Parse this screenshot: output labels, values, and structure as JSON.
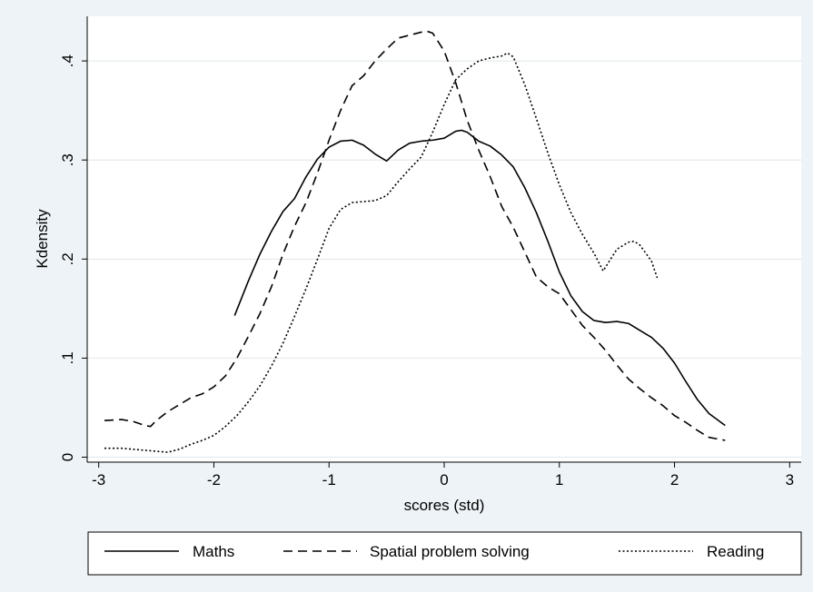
{
  "chart_data": {
    "type": "line",
    "title": "",
    "xlabel": "scores (std)",
    "ylabel": "Kdensity",
    "xlim": [
      -3.1,
      3.1
    ],
    "ylim": [
      -0.005,
      0.445
    ],
    "x_ticks": [
      -3,
      -2,
      -1,
      0,
      1,
      2,
      3
    ],
    "x_tick_labels": [
      "-3",
      "-2",
      "-1",
      "0",
      "1",
      "2",
      "3"
    ],
    "y_ticks": [
      0,
      0.1,
      0.2,
      0.3,
      0.4
    ],
    "y_tick_labels": [
      "0",
      ".1",
      ".2",
      ".3",
      ".4"
    ],
    "grid": "horizontal",
    "legend_position": "bottom",
    "colors": {
      "background": "#eef3f7",
      "plot_area": "#ffffff",
      "grid": "#e1e6ea",
      "line": "#000000"
    },
    "series": [
      {
        "name": "Maths",
        "dash": "solid",
        "x": [
          -1.82,
          -1.7,
          -1.6,
          -1.5,
          -1.4,
          -1.3,
          -1.2,
          -1.1,
          -1.0,
          -0.9,
          -0.8,
          -0.7,
          -0.6,
          -0.5,
          -0.4,
          -0.3,
          -0.2,
          -0.1,
          0.0,
          0.1,
          0.15,
          0.2,
          0.3,
          0.4,
          0.5,
          0.6,
          0.7,
          0.8,
          0.9,
          1.0,
          1.1,
          1.2,
          1.3,
          1.4,
          1.5,
          1.6,
          1.7,
          1.8,
          1.9,
          2.0,
          2.1,
          2.2,
          2.3,
          2.44
        ],
        "y": [
          0.143,
          0.178,
          0.205,
          0.228,
          0.248,
          0.261,
          0.283,
          0.301,
          0.313,
          0.319,
          0.32,
          0.315,
          0.306,
          0.299,
          0.31,
          0.317,
          0.319,
          0.32,
          0.322,
          0.329,
          0.33,
          0.328,
          0.319,
          0.314,
          0.305,
          0.293,
          0.272,
          0.247,
          0.218,
          0.187,
          0.163,
          0.147,
          0.138,
          0.136,
          0.137,
          0.135,
          0.128,
          0.121,
          0.11,
          0.095,
          0.076,
          0.058,
          0.044,
          0.032
        ]
      },
      {
        "name": "Spatial problem solving",
        "dash": "dashed",
        "x": [
          -2.95,
          -2.8,
          -2.7,
          -2.6,
          -2.55,
          -2.5,
          -2.4,
          -2.3,
          -2.2,
          -2.1,
          -2.0,
          -1.9,
          -1.8,
          -1.7,
          -1.6,
          -1.5,
          -1.4,
          -1.3,
          -1.2,
          -1.1,
          -1.0,
          -0.9,
          -0.8,
          -0.7,
          -0.6,
          -0.5,
          -0.4,
          -0.3,
          -0.2,
          -0.15,
          -0.1,
          0.0,
          0.1,
          0.2,
          0.3,
          0.4,
          0.5,
          0.6,
          0.7,
          0.8,
          0.9,
          1.0,
          1.1,
          1.2,
          1.3,
          1.4,
          1.5,
          1.6,
          1.7,
          1.8,
          1.9,
          2.0,
          2.1,
          2.2,
          2.3,
          2.44
        ],
        "y": [
          0.037,
          0.038,
          0.036,
          0.032,
          0.031,
          0.037,
          0.046,
          0.053,
          0.06,
          0.064,
          0.071,
          0.082,
          0.1,
          0.122,
          0.145,
          0.172,
          0.205,
          0.233,
          0.257,
          0.287,
          0.32,
          0.35,
          0.375,
          0.385,
          0.4,
          0.412,
          0.423,
          0.426,
          0.429,
          0.43,
          0.428,
          0.41,
          0.378,
          0.34,
          0.31,
          0.283,
          0.253,
          0.232,
          0.207,
          0.182,
          0.172,
          0.165,
          0.149,
          0.133,
          0.121,
          0.108,
          0.093,
          0.079,
          0.069,
          0.06,
          0.052,
          0.042,
          0.035,
          0.027,
          0.02,
          0.017
        ]
      },
      {
        "name": "Reading",
        "dash": "dotted",
        "x": [
          -2.95,
          -2.8,
          -2.6,
          -2.5,
          -2.4,
          -2.3,
          -2.2,
          -2.1,
          -2.0,
          -1.9,
          -1.8,
          -1.7,
          -1.6,
          -1.5,
          -1.4,
          -1.3,
          -1.2,
          -1.1,
          -1.0,
          -0.9,
          -0.8,
          -0.7,
          -0.6,
          -0.5,
          -0.4,
          -0.3,
          -0.2,
          -0.1,
          0.0,
          0.1,
          0.2,
          0.3,
          0.4,
          0.5,
          0.55,
          0.6,
          0.7,
          0.8,
          0.9,
          1.0,
          1.1,
          1.2,
          1.3,
          1.38,
          1.5,
          1.6,
          1.65,
          1.7,
          1.8,
          1.85
        ],
        "y": [
          0.009,
          0.009,
          0.007,
          0.006,
          0.005,
          0.008,
          0.013,
          0.017,
          0.022,
          0.031,
          0.042,
          0.056,
          0.072,
          0.092,
          0.115,
          0.142,
          0.17,
          0.2,
          0.231,
          0.25,
          0.257,
          0.258,
          0.259,
          0.264,
          0.278,
          0.291,
          0.303,
          0.328,
          0.356,
          0.381,
          0.392,
          0.4,
          0.403,
          0.405,
          0.408,
          0.404,
          0.376,
          0.342,
          0.307,
          0.275,
          0.247,
          0.225,
          0.206,
          0.188,
          0.21,
          0.217,
          0.218,
          0.214,
          0.198,
          0.181
        ]
      }
    ]
  }
}
